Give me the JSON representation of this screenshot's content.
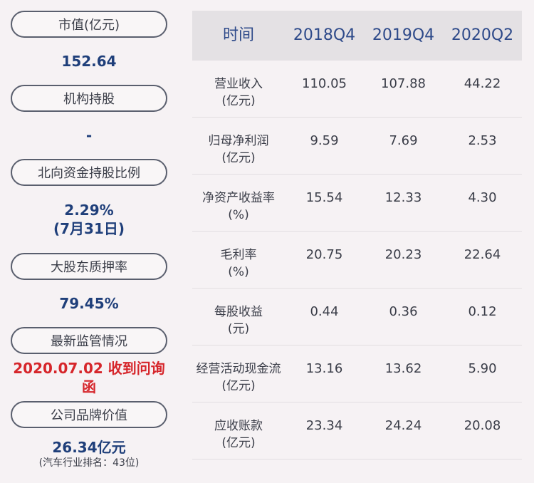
{
  "left": {
    "items": [
      {
        "label": "市值(亿元)",
        "value": "152.64",
        "sub": ""
      },
      {
        "label": "机构持股",
        "value": "-",
        "sub": ""
      },
      {
        "label": "北向资金持股比例",
        "value": "2.29%",
        "value2": "(7月31日)"
      },
      {
        "label": "大股东质押率",
        "value": "79.45%",
        "sub": ""
      },
      {
        "label": "最新监管情况",
        "value": "2020.07.02 收到问询函",
        "sub": ""
      },
      {
        "label": "公司品牌价值",
        "value": "26.34亿元",
        "sub": "(汽车行业排名：43位)"
      }
    ]
  },
  "table": {
    "headers": [
      "时间",
      "2018Q4",
      "2019Q4",
      "2020Q2"
    ],
    "rows": [
      {
        "name": "营业收入",
        "unit": "(亿元)",
        "values": [
          "110.05",
          "107.88",
          "44.22"
        ]
      },
      {
        "name": "归母净利润",
        "unit": "(亿元)",
        "values": [
          "9.59",
          "7.69",
          "2.53"
        ]
      },
      {
        "name": "净资产收益率",
        "unit": "(%)",
        "values": [
          "15.54",
          "12.33",
          "4.30"
        ]
      },
      {
        "name": "毛利率",
        "unit": "(%)",
        "values": [
          "20.75",
          "20.23",
          "22.64"
        ]
      },
      {
        "name": "每股收益",
        "unit": "(元)",
        "values": [
          "0.44",
          "0.36",
          "0.12"
        ]
      },
      {
        "name": "经营活动现金流",
        "unit": "(亿元)",
        "values": [
          "13.16",
          "13.62",
          "5.90"
        ]
      },
      {
        "name": "应收账款",
        "unit": "(亿元)",
        "values": [
          "23.34",
          "24.24",
          "20.08"
        ]
      }
    ]
  }
}
